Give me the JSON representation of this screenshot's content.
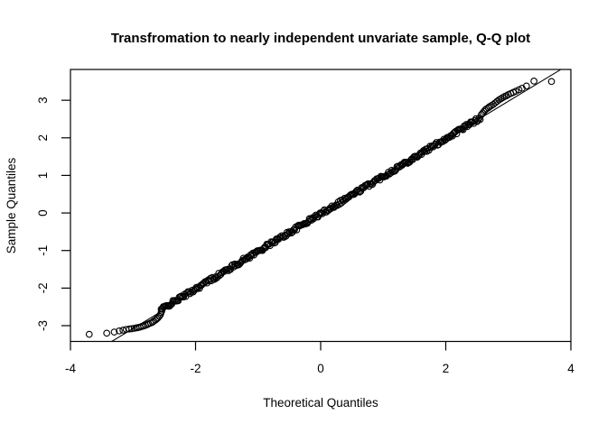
{
  "chart_data": {
    "type": "scatter",
    "title": "Transfromation to nearly independent unvariate sample, Q-Q plot",
    "xlabel": "Theoretical Quantiles",
    "ylabel": "Sample Quantiles",
    "xlim": [
      -4,
      4
    ],
    "ylim": [
      -3.42,
      3.82
    ],
    "x_ticks": [
      -4,
      -2,
      0,
      2,
      4
    ],
    "y_ticks": [
      -3,
      -2,
      -1,
      0,
      1,
      2,
      3
    ],
    "grid": false,
    "plot_border": true,
    "marker": "open-circle",
    "marker_color": "#000000",
    "line_color": "#000000",
    "reference_line": {
      "x1": -3.34,
      "y1": -3.42,
      "x2": 3.83,
      "y2": 3.81
    },
    "dense_band": {
      "comment": "central points hug y = x, heavily overplotted",
      "x_start": -2.55,
      "x_end": 2.55,
      "n": 300,
      "y_offset": -0.02,
      "jitter": 0.05,
      "seed": 42
    },
    "lower_tail_points": [
      [
        -3.7,
        -3.23
      ],
      [
        -3.42,
        -3.2
      ],
      [
        -3.3,
        -3.17
      ],
      [
        -3.22,
        -3.14
      ],
      [
        -3.16,
        -3.12
      ],
      [
        -3.11,
        -3.1
      ],
      [
        -3.06,
        -3.09
      ],
      [
        -3.02,
        -3.08
      ],
      [
        -2.98,
        -3.07
      ],
      [
        -2.95,
        -3.06
      ],
      [
        -2.92,
        -3.05
      ],
      [
        -2.89,
        -3.04
      ],
      [
        -2.86,
        -3.02
      ],
      [
        -2.83,
        -3.01
      ],
      [
        -2.8,
        -2.99
      ],
      [
        -2.77,
        -2.97
      ],
      [
        -2.75,
        -2.95
      ],
      [
        -2.72,
        -2.93
      ],
      [
        -2.69,
        -2.91
      ],
      [
        -2.67,
        -2.88
      ],
      [
        -2.64,
        -2.85
      ],
      [
        -2.62,
        -2.82
      ],
      [
        -2.6,
        -2.79
      ],
      [
        -2.58,
        -2.75
      ],
      [
        -2.56,
        -2.7
      ],
      [
        -2.55,
        -2.65
      ],
      [
        -2.54,
        -2.61
      ]
    ],
    "upper_tail_points": [
      [
        2.57,
        2.62
      ],
      [
        2.59,
        2.66
      ],
      [
        2.61,
        2.7
      ],
      [
        2.63,
        2.74
      ],
      [
        2.65,
        2.77
      ],
      [
        2.68,
        2.8
      ],
      [
        2.7,
        2.83
      ],
      [
        2.73,
        2.86
      ],
      [
        2.76,
        2.89
      ],
      [
        2.79,
        2.93
      ],
      [
        2.82,
        2.97
      ],
      [
        2.85,
        3.01
      ],
      [
        2.88,
        3.04
      ],
      [
        2.91,
        3.07
      ],
      [
        2.94,
        3.1
      ],
      [
        2.97,
        3.12
      ],
      [
        3.0,
        3.15
      ],
      [
        3.04,
        3.18
      ],
      [
        3.08,
        3.21
      ],
      [
        3.12,
        3.24
      ],
      [
        3.17,
        3.28
      ],
      [
        3.22,
        3.32
      ],
      [
        3.29,
        3.38
      ],
      [
        3.41,
        3.51
      ],
      [
        3.69,
        3.5
      ]
    ]
  }
}
